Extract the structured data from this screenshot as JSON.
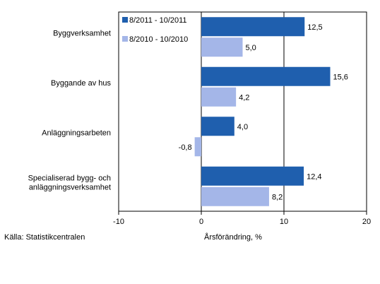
{
  "chart_data": {
    "type": "bar",
    "orientation": "horizontal",
    "categories": [
      [
        "Byggverksamhet"
      ],
      [
        "Byggande av hus"
      ],
      [
        "Anläggningsarbeten"
      ],
      [
        "Specialiserad bygg- och",
        "anläggningsverksamhet"
      ]
    ],
    "series": [
      {
        "name": "8/2011 - 10/2011",
        "values": [
          12.5,
          15.6,
          4.0,
          12.4
        ],
        "labels": [
          "12,5",
          "15,6",
          "4,0",
          "12,4"
        ],
        "color": "#1f5fae"
      },
      {
        "name": "8/2010 - 10/2010",
        "values": [
          5.0,
          4.2,
          -0.8,
          8.2
        ],
        "labels": [
          "5,0",
          "4,2",
          "-0,8",
          "8,2"
        ],
        "color": "#a4b6e8"
      }
    ],
    "xlabel": "Årsförändring, %",
    "xlim": [
      -10,
      20
    ],
    "xticks": [
      -10,
      0,
      10,
      20
    ],
    "xtick_labels": [
      "-10",
      "0",
      "10",
      "20"
    ],
    "grid": "vertical lines at 0 and 10",
    "legend_position": "top-left inside plot"
  },
  "source": "Källa: Statistikcentralen"
}
